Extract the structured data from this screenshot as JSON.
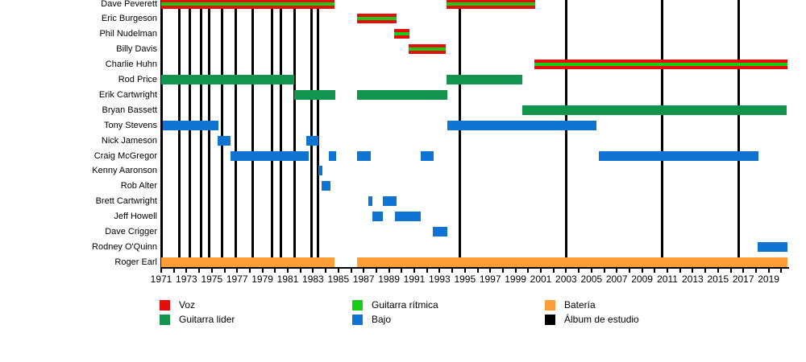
{
  "chart_data": {
    "type": "timeline",
    "description": "Band membership timeline with studio-album markers",
    "x_axis": {
      "range": [
        1971,
        2020.5
      ],
      "minor_tick_every_years": 1,
      "tick_label_years": [
        1971,
        1973,
        1975,
        1977,
        1979,
        1981,
        1983,
        1985,
        1987,
        1989,
        1991,
        1993,
        1995,
        1997,
        1999,
        2001,
        2003,
        2005,
        2007,
        2009,
        2011,
        2013,
        2015,
        2017,
        2019
      ]
    },
    "legend": {
      "columns": [
        {
          "items": [
            {
              "label": "Voz",
              "color": "#E60D0D"
            },
            {
              "label": "Guitarra lider",
              "color": "#12944F"
            }
          ]
        },
        {
          "items": [
            {
              "label": "Guitarra rítmica",
              "color": "#1ACC1A"
            },
            {
              "label": "Bajo",
              "color": "#0F73D1"
            }
          ]
        },
        {
          "items": [
            {
              "label": "Batería",
              "color": "#FF9E36"
            },
            {
              "label": "Álbum de estudio",
              "color": "#000000"
            }
          ]
        }
      ]
    },
    "members": [
      {
        "name": "Dave Peverett",
        "roles": [
          "Voz",
          "Guitarra rítmica"
        ],
        "periods": [
          [
            1971.0,
            1984.7
          ],
          [
            1993.55,
            2000.55
          ]
        ]
      },
      {
        "name": "Eric Burgeson",
        "roles": [
          "Voz",
          "Guitarra rítmica"
        ],
        "periods": [
          [
            1986.48,
            1989.6
          ]
        ]
      },
      {
        "name": "Phil Nudelman",
        "roles": [
          "Voz",
          "Guitarra rítmica"
        ],
        "periods": [
          [
            1989.41,
            1990.62
          ]
        ]
      },
      {
        "name": "Billy Davis",
        "roles": [
          "Voz",
          "Guitarra rítmica"
        ],
        "periods": [
          [
            1990.55,
            1993.48
          ]
        ]
      },
      {
        "name": "Charlie Huhn",
        "roles": [
          "Voz",
          "Guitarra rítmica"
        ],
        "periods": [
          [
            2000.49,
            2020.49
          ]
        ]
      },
      {
        "name": "Rod Price",
        "roles": [
          "Guitarra lider"
        ],
        "periods": [
          [
            1971.0,
            1981.51
          ],
          [
            1993.55,
            1999.53
          ]
        ]
      },
      {
        "name": "Erik Cartwright",
        "roles": [
          "Guitarra lider"
        ],
        "periods": [
          [
            1981.51,
            1984.76
          ],
          [
            1986.48,
            1993.61
          ]
        ]
      },
      {
        "name": "Bryan Bassett",
        "roles": [
          "Guitarra lider"
        ],
        "periods": [
          [
            1999.53,
            2020.43
          ]
        ]
      },
      {
        "name": "Tony Stevens",
        "roles": [
          "Bajo"
        ],
        "periods": [
          [
            1971.13,
            1975.52
          ],
          [
            1993.61,
            2005.39
          ]
        ]
      },
      {
        "name": "Nick Jameson",
        "roles": [
          "Bajo"
        ],
        "periods": [
          [
            1975.46,
            1976.48
          ],
          [
            1982.46,
            1983.42
          ]
        ]
      },
      {
        "name": "Craig McGregor",
        "roles": [
          "Bajo"
        ],
        "periods": [
          [
            1976.48,
            1982.66
          ],
          [
            1984.25,
            1984.82
          ],
          [
            1986.48,
            1987.56
          ],
          [
            1991.51,
            1992.53
          ],
          [
            2005.58,
            2018.19
          ]
        ]
      },
      {
        "name": "Kenny Aaronson",
        "roles": [
          "Bajo"
        ],
        "periods": [
          [
            1983.42,
            1983.74
          ]
        ]
      },
      {
        "name": "Rob Alter",
        "roles": [
          "Bajo"
        ],
        "periods": [
          [
            1983.68,
            1984.38
          ]
        ]
      },
      {
        "name": "Brett Cartwright",
        "roles": [
          "Bajo"
        ],
        "periods": [
          [
            1987.37,
            1987.69
          ],
          [
            1988.52,
            1989.6
          ]
        ]
      },
      {
        "name": "Jeff Howell",
        "roles": [
          "Bajo"
        ],
        "periods": [
          [
            1987.69,
            1988.52
          ],
          [
            1989.47,
            1991.51
          ]
        ]
      },
      {
        "name": "Dave Crigger",
        "roles": [
          "Bajo"
        ],
        "periods": [
          [
            1992.46,
            1993.61
          ]
        ]
      },
      {
        "name": "Rodney O'Quinn",
        "roles": [
          "Bajo"
        ],
        "periods": [
          [
            2018.13,
            2020.49
          ]
        ]
      },
      {
        "name": "Roger Earl",
        "roles": [
          "Batería"
        ],
        "periods": [
          [
            1971.0,
            1984.7
          ],
          [
            1986.48,
            2020.49
          ]
        ]
      }
    ],
    "albums": {
      "label": "Álbum de estudio",
      "years": [
        1972.46,
        1973.23,
        1974.18,
        1974.82,
        1975.78,
        1976.86,
        1978.2,
        1979.73,
        1980.43,
        1981.51,
        1982.85,
        1983.42,
        1994.57,
        2003.03,
        2010.61,
        2016.66
      ]
    }
  }
}
